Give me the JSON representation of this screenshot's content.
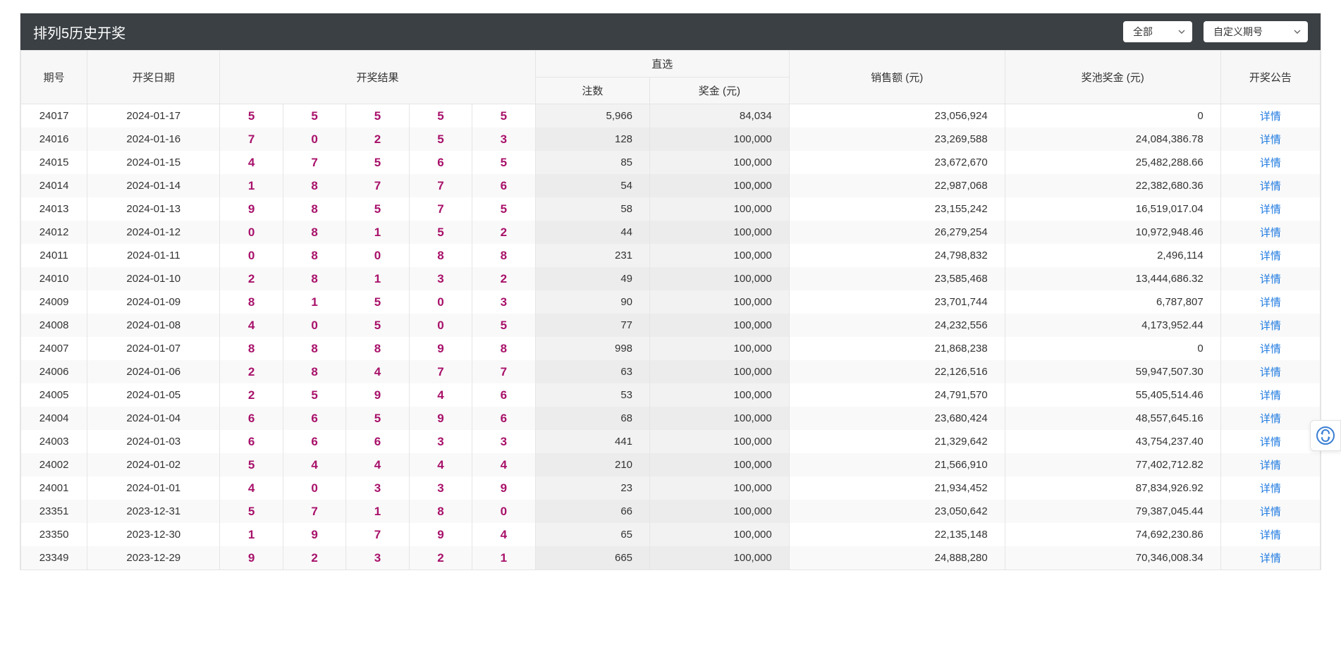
{
  "header": {
    "title": "排列5历史开奖",
    "filter_all": "全部",
    "filter_custom": "自定义期号"
  },
  "columns": {
    "issue": "期号",
    "date": "开奖日期",
    "result": "开奖结果",
    "zhixuan": "直选",
    "count": "注数",
    "bonus": "奖金 (元)",
    "sales": "销售额 (元)",
    "pool": "奖池奖金 (元)",
    "notice": "开奖公告"
  },
  "detail_label": "详情",
  "ball_color": "#a8116a",
  "link_color": "#1f7ae0",
  "rows": [
    {
      "issue": "24017",
      "date": "2024-01-17",
      "balls": [
        "5",
        "5",
        "5",
        "5",
        "5"
      ],
      "count": "5,966",
      "bonus": "84,034",
      "sales": "23,056,924",
      "pool": "0"
    },
    {
      "issue": "24016",
      "date": "2024-01-16",
      "balls": [
        "7",
        "0",
        "2",
        "5",
        "3"
      ],
      "count": "128",
      "bonus": "100,000",
      "sales": "23,269,588",
      "pool": "24,084,386.78"
    },
    {
      "issue": "24015",
      "date": "2024-01-15",
      "balls": [
        "4",
        "7",
        "5",
        "6",
        "5"
      ],
      "count": "85",
      "bonus": "100,000",
      "sales": "23,672,670",
      "pool": "25,482,288.66"
    },
    {
      "issue": "24014",
      "date": "2024-01-14",
      "balls": [
        "1",
        "8",
        "7",
        "7",
        "6"
      ],
      "count": "54",
      "bonus": "100,000",
      "sales": "22,987,068",
      "pool": "22,382,680.36"
    },
    {
      "issue": "24013",
      "date": "2024-01-13",
      "balls": [
        "9",
        "8",
        "5",
        "7",
        "5"
      ],
      "count": "58",
      "bonus": "100,000",
      "sales": "23,155,242",
      "pool": "16,519,017.04"
    },
    {
      "issue": "24012",
      "date": "2024-01-12",
      "balls": [
        "0",
        "8",
        "1",
        "5",
        "2"
      ],
      "count": "44",
      "bonus": "100,000",
      "sales": "26,279,254",
      "pool": "10,972,948.46"
    },
    {
      "issue": "24011",
      "date": "2024-01-11",
      "balls": [
        "0",
        "8",
        "0",
        "8",
        "8"
      ],
      "count": "231",
      "bonus": "100,000",
      "sales": "24,798,832",
      "pool": "2,496,114"
    },
    {
      "issue": "24010",
      "date": "2024-01-10",
      "balls": [
        "2",
        "8",
        "1",
        "3",
        "2"
      ],
      "count": "49",
      "bonus": "100,000",
      "sales": "23,585,468",
      "pool": "13,444,686.32"
    },
    {
      "issue": "24009",
      "date": "2024-01-09",
      "balls": [
        "8",
        "1",
        "5",
        "0",
        "3"
      ],
      "count": "90",
      "bonus": "100,000",
      "sales": "23,701,744",
      "pool": "6,787,807"
    },
    {
      "issue": "24008",
      "date": "2024-01-08",
      "balls": [
        "4",
        "0",
        "5",
        "0",
        "5"
      ],
      "count": "77",
      "bonus": "100,000",
      "sales": "24,232,556",
      "pool": "4,173,952.44"
    },
    {
      "issue": "24007",
      "date": "2024-01-07",
      "balls": [
        "8",
        "8",
        "8",
        "9",
        "8"
      ],
      "count": "998",
      "bonus": "100,000",
      "sales": "21,868,238",
      "pool": "0"
    },
    {
      "issue": "24006",
      "date": "2024-01-06",
      "balls": [
        "2",
        "8",
        "4",
        "7",
        "7"
      ],
      "count": "63",
      "bonus": "100,000",
      "sales": "22,126,516",
      "pool": "59,947,507.30"
    },
    {
      "issue": "24005",
      "date": "2024-01-05",
      "balls": [
        "2",
        "5",
        "9",
        "4",
        "6"
      ],
      "count": "53",
      "bonus": "100,000",
      "sales": "24,791,570",
      "pool": "55,405,514.46"
    },
    {
      "issue": "24004",
      "date": "2024-01-04",
      "balls": [
        "6",
        "6",
        "5",
        "9",
        "6"
      ],
      "count": "68",
      "bonus": "100,000",
      "sales": "23,680,424",
      "pool": "48,557,645.16"
    },
    {
      "issue": "24003",
      "date": "2024-01-03",
      "balls": [
        "6",
        "6",
        "6",
        "3",
        "3"
      ],
      "count": "441",
      "bonus": "100,000",
      "sales": "21,329,642",
      "pool": "43,754,237.40"
    },
    {
      "issue": "24002",
      "date": "2024-01-02",
      "balls": [
        "5",
        "4",
        "4",
        "4",
        "4"
      ],
      "count": "210",
      "bonus": "100,000",
      "sales": "21,566,910",
      "pool": "77,402,712.82"
    },
    {
      "issue": "24001",
      "date": "2024-01-01",
      "balls": [
        "4",
        "0",
        "3",
        "3",
        "9"
      ],
      "count": "23",
      "bonus": "100,000",
      "sales": "21,934,452",
      "pool": "87,834,926.92"
    },
    {
      "issue": "23351",
      "date": "2023-12-31",
      "balls": [
        "5",
        "7",
        "1",
        "8",
        "0"
      ],
      "count": "66",
      "bonus": "100,000",
      "sales": "23,050,642",
      "pool": "79,387,045.44"
    },
    {
      "issue": "23350",
      "date": "2023-12-30",
      "balls": [
        "1",
        "9",
        "7",
        "9",
        "4"
      ],
      "count": "65",
      "bonus": "100,000",
      "sales": "22,135,148",
      "pool": "74,692,230.86"
    },
    {
      "issue": "23349",
      "date": "2023-12-29",
      "balls": [
        "9",
        "2",
        "3",
        "2",
        "1"
      ],
      "count": "665",
      "bonus": "100,000",
      "sales": "24,888,280",
      "pool": "70,346,008.34"
    }
  ]
}
